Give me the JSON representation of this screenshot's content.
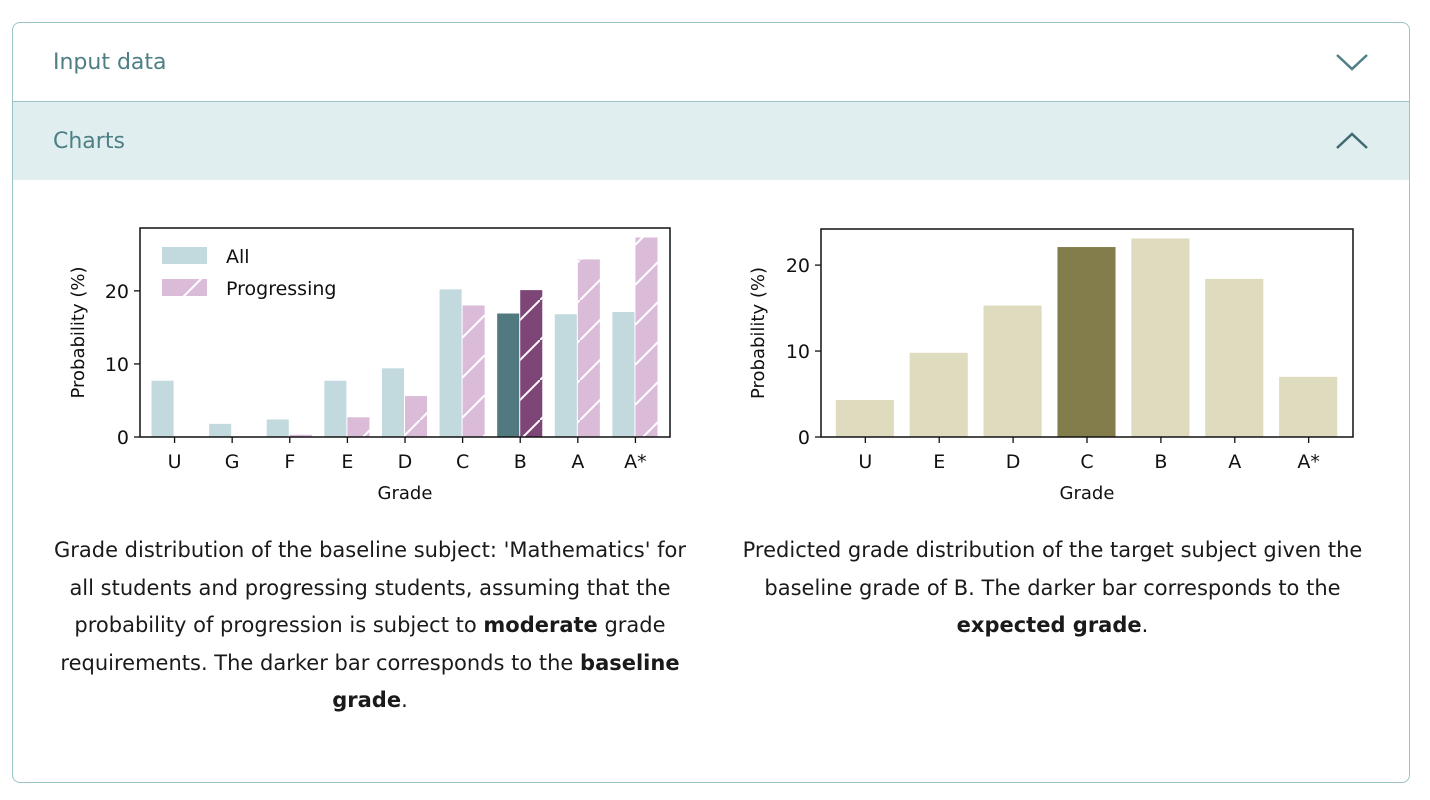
{
  "accordion": {
    "input_label": "Input data",
    "charts_label": "Charts"
  },
  "captions": {
    "left": [
      "Grade distribution of the baseline subject: 'Mathematics' for all students and progressing students, assuming that the probability of progression is subject to ",
      "moderate",
      " grade requirements. The darker bar corresponds to the ",
      "baseline grade",
      "."
    ],
    "right": [
      "Predicted grade distribution of the target subject given the baseline grade of B. The darker bar corresponds to the ",
      "expected grade",
      "."
    ]
  },
  "chart_data": [
    {
      "type": "bar",
      "xlabel": "Grade",
      "ylabel": "Probability (%)",
      "ylim": [
        0,
        28.6
      ],
      "yticks": [
        0,
        10,
        20
      ],
      "categories": [
        "U",
        "G",
        "F",
        "E",
        "D",
        "C",
        "B",
        "A",
        "A*"
      ],
      "highlight": "B",
      "legend": "top-left",
      "series": [
        {
          "name": "All",
          "values": [
            7.7,
            1.8,
            2.4,
            7.7,
            9.4,
            20.2,
            16.9,
            16.8,
            17.1
          ],
          "color": "#c2dadd",
          "highlight_color": "#517a80"
        },
        {
          "name": "Progressing",
          "values": [
            0.1,
            0,
            0.3,
            2.7,
            5.6,
            18.0,
            20.1,
            24.3,
            27.3
          ],
          "color": "#dabcd9",
          "highlight_color": "#7e4677",
          "hatch": "/"
        }
      ]
    },
    {
      "type": "bar",
      "xlabel": "Grade",
      "ylabel": "Probability (%)",
      "ylim": [
        0,
        24.2
      ],
      "yticks": [
        0,
        10,
        20
      ],
      "categories": [
        "U",
        "E",
        "D",
        "C",
        "B",
        "A",
        "A*"
      ],
      "highlight": "C",
      "series": [
        {
          "values": [
            4.3,
            9.8,
            15.3,
            22.1,
            23.1,
            18.4,
            7.0
          ],
          "color": "#dfdbbe",
          "highlight_color": "#827d4a"
        }
      ]
    }
  ]
}
